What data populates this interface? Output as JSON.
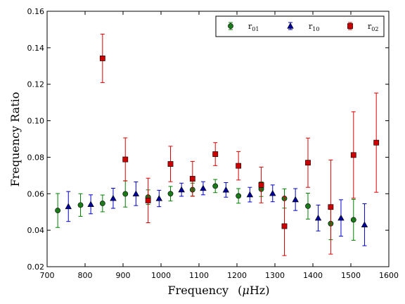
{
  "chart_data": {
    "type": "scatter",
    "xlabel_main": "Frequency",
    "xlabel_unit_prefix": "(",
    "xlabel_unit_mu": "μ",
    "xlabel_unit_rest": "Hz)",
    "ylabel": "Frequency Ratio",
    "xlim": [
      700,
      1600
    ],
    "ylim": [
      0.02,
      0.16
    ],
    "xticks": [
      700,
      800,
      900,
      1000,
      1100,
      1200,
      1300,
      1400,
      1500,
      1600
    ],
    "yticks": [
      0.02,
      0.04,
      0.06,
      0.08,
      0.1,
      0.12,
      0.14,
      0.16
    ],
    "ytick_labels": [
      "0.02",
      "0.04",
      "0.06",
      "0.08",
      "0.10",
      "0.12",
      "0.14",
      "0.16"
    ],
    "legend_position": "top-right",
    "grid": false,
    "series": [
      {
        "name_base": "r",
        "name_sub": "01",
        "marker": "circle",
        "color": "#008000",
        "face": "#1a7a1a",
        "points": [
          {
            "x": 728,
            "y": 0.0508,
            "err": 0.0093
          },
          {
            "x": 788,
            "y": 0.0538,
            "err": 0.0062
          },
          {
            "x": 846,
            "y": 0.0547,
            "err": 0.0046
          },
          {
            "x": 906,
            "y": 0.0599,
            "err": 0.0072
          },
          {
            "x": 966,
            "y": 0.0581,
            "err": 0.004
          },
          {
            "x": 1025,
            "y": 0.06,
            "err": 0.004
          },
          {
            "x": 1083,
            "y": 0.0622,
            "err": 0.0036
          },
          {
            "x": 1143,
            "y": 0.0642,
            "err": 0.0036
          },
          {
            "x": 1204,
            "y": 0.0588,
            "err": 0.004
          },
          {
            "x": 1264,
            "y": 0.0625,
            "err": 0.004
          },
          {
            "x": 1325,
            "y": 0.0574,
            "err": 0.0053
          },
          {
            "x": 1387,
            "y": 0.0532,
            "err": 0.0071
          },
          {
            "x": 1447,
            "y": 0.0436,
            "err": 0.0088
          },
          {
            "x": 1507,
            "y": 0.0457,
            "err": 0.0112
          }
        ]
      },
      {
        "name_base": "r",
        "name_sub": "10",
        "marker": "triangle",
        "color": "#0000cc",
        "face": "#000099",
        "points": [
          {
            "x": 756,
            "y": 0.053,
            "err": 0.0082
          },
          {
            "x": 815,
            "y": 0.0542,
            "err": 0.0052
          },
          {
            "x": 874,
            "y": 0.0575,
            "err": 0.0055
          },
          {
            "x": 934,
            "y": 0.06,
            "err": 0.0065
          },
          {
            "x": 995,
            "y": 0.0574,
            "err": 0.0045
          },
          {
            "x": 1054,
            "y": 0.0622,
            "err": 0.0036
          },
          {
            "x": 1111,
            "y": 0.063,
            "err": 0.0036
          },
          {
            "x": 1171,
            "y": 0.0621,
            "err": 0.004
          },
          {
            "x": 1234,
            "y": 0.0595,
            "err": 0.004
          },
          {
            "x": 1294,
            "y": 0.0602,
            "err": 0.0046
          },
          {
            "x": 1354,
            "y": 0.0568,
            "err": 0.006
          },
          {
            "x": 1414,
            "y": 0.0467,
            "err": 0.0071
          },
          {
            "x": 1474,
            "y": 0.0467,
            "err": 0.01
          },
          {
            "x": 1536,
            "y": 0.043,
            "err": 0.0115
          }
        ]
      },
      {
        "name_base": "r",
        "name_sub": "02",
        "marker": "square",
        "color": "#dd0000",
        "face": "#cc0000",
        "points": [
          {
            "x": 846,
            "y": 0.1342,
            "err": 0.0133
          },
          {
            "x": 906,
            "y": 0.0788,
            "err": 0.0118
          },
          {
            "x": 966,
            "y": 0.0563,
            "err": 0.0122
          },
          {
            "x": 1025,
            "y": 0.0763,
            "err": 0.0097
          },
          {
            "x": 1083,
            "y": 0.0682,
            "err": 0.0095
          },
          {
            "x": 1143,
            "y": 0.0817,
            "err": 0.0063
          },
          {
            "x": 1204,
            "y": 0.0753,
            "err": 0.0078
          },
          {
            "x": 1264,
            "y": 0.0648,
            "err": 0.0098
          },
          {
            "x": 1325,
            "y": 0.0422,
            "err": 0.0161
          },
          {
            "x": 1387,
            "y": 0.077,
            "err": 0.0135
          },
          {
            "x": 1447,
            "y": 0.0527,
            "err": 0.0258
          },
          {
            "x": 1507,
            "y": 0.0812,
            "err": 0.0237
          },
          {
            "x": 1567,
            "y": 0.088,
            "err": 0.0272
          }
        ]
      }
    ]
  }
}
